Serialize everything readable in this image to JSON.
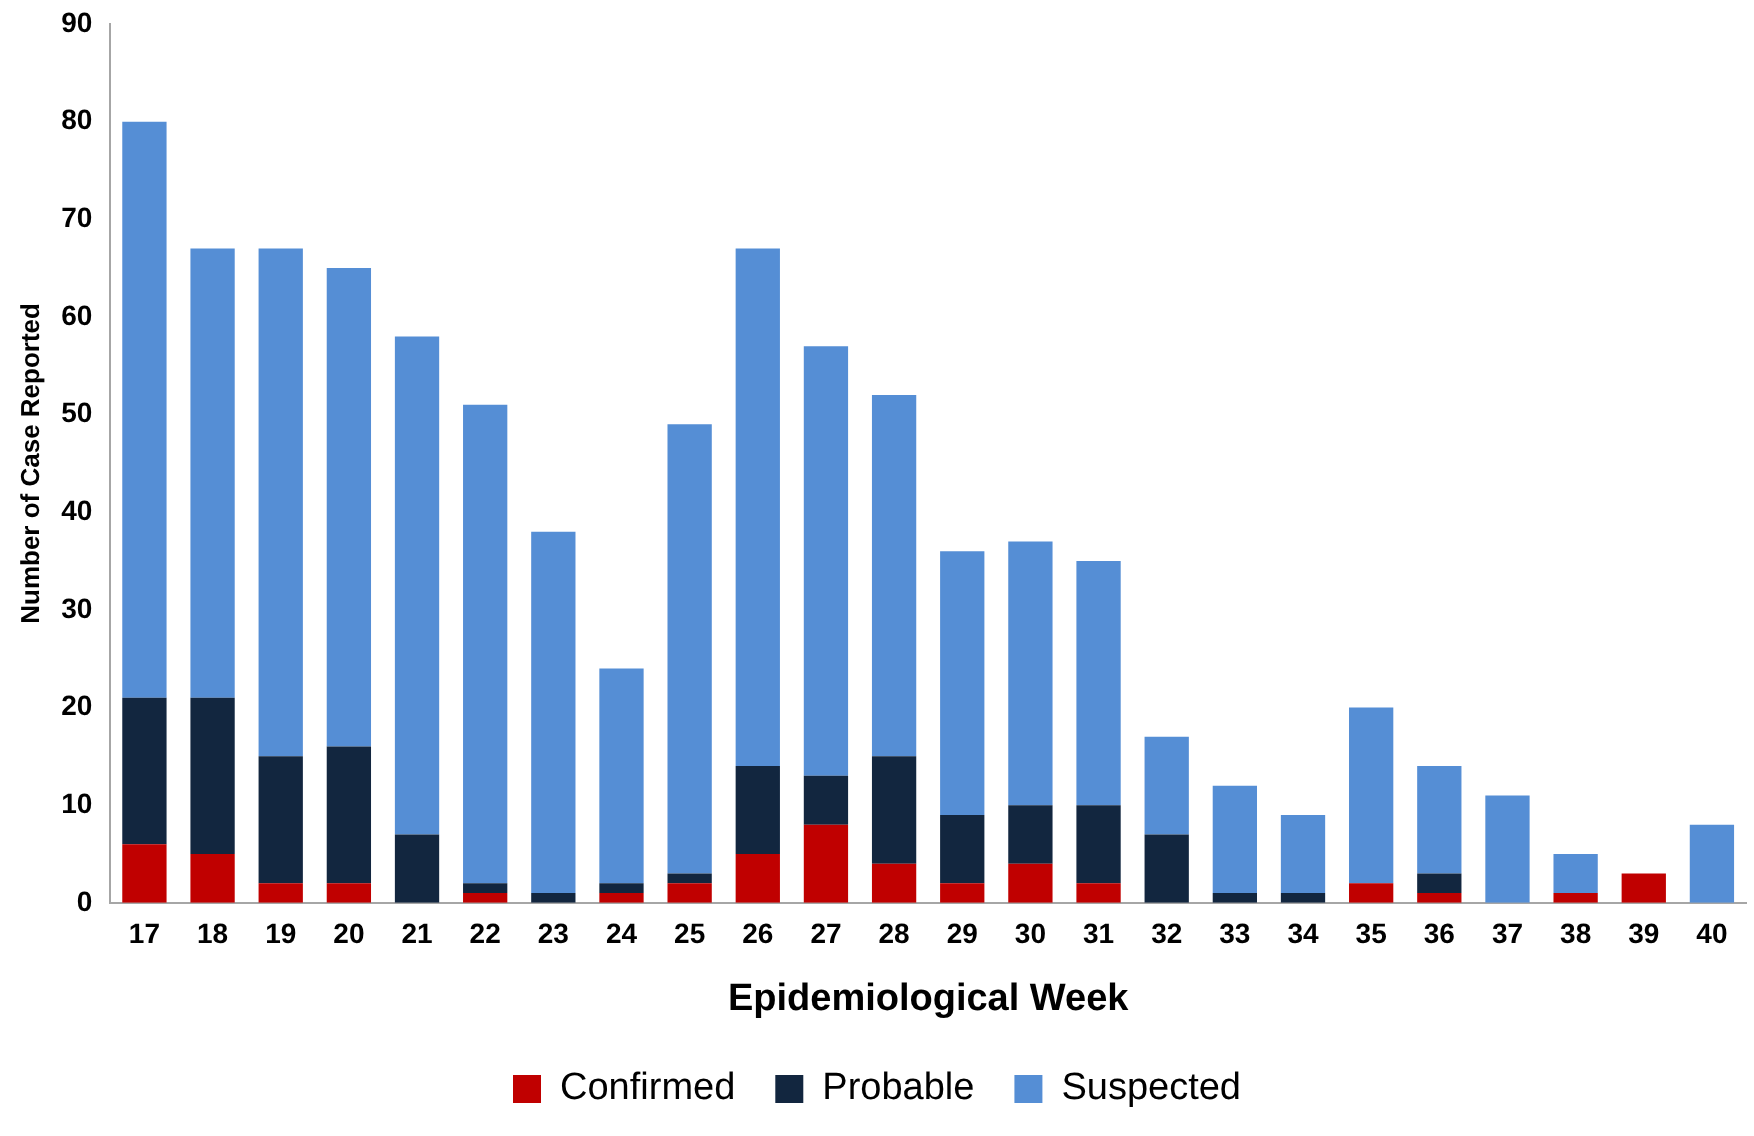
{
  "chart_data": {
    "type": "bar",
    "stacked": true,
    "xlabel": "Epidemiological Week",
    "ylabel": "Number of Case Reported",
    "categories": [
      "17",
      "18",
      "19",
      "20",
      "21",
      "22",
      "23",
      "24",
      "25",
      "26",
      "27",
      "28",
      "29",
      "30",
      "31",
      "32",
      "33",
      "34",
      "35",
      "36",
      "37",
      "38",
      "39",
      "40"
    ],
    "series": [
      {
        "name": "Confirmed",
        "color": "#c00000",
        "values": [
          6,
          5,
          2,
          2,
          0,
          1,
          0,
          1,
          2,
          5,
          8,
          4,
          2,
          4,
          2,
          0,
          0,
          0,
          2,
          1,
          0,
          1,
          3,
          0
        ]
      },
      {
        "name": "Probable",
        "color": "#12263f",
        "values": [
          15,
          16,
          13,
          14,
          7,
          1,
          1,
          1,
          1,
          9,
          5,
          11,
          7,
          6,
          8,
          7,
          1,
          1,
          0,
          2,
          0,
          0,
          0,
          0
        ]
      },
      {
        "name": "Suspected",
        "color": "#558ed5",
        "values": [
          59,
          46,
          52,
          49,
          51,
          49,
          37,
          22,
          46,
          53,
          44,
          37,
          27,
          27,
          25,
          10,
          11,
          8,
          18,
          11,
          11,
          4,
          0,
          8
        ]
      }
    ],
    "ylim": [
      0,
      90
    ],
    "yticks": [
      0,
      10,
      20,
      30,
      40,
      50,
      60,
      70,
      80,
      90
    ],
    "grid": false,
    "legend": "bottom"
  }
}
